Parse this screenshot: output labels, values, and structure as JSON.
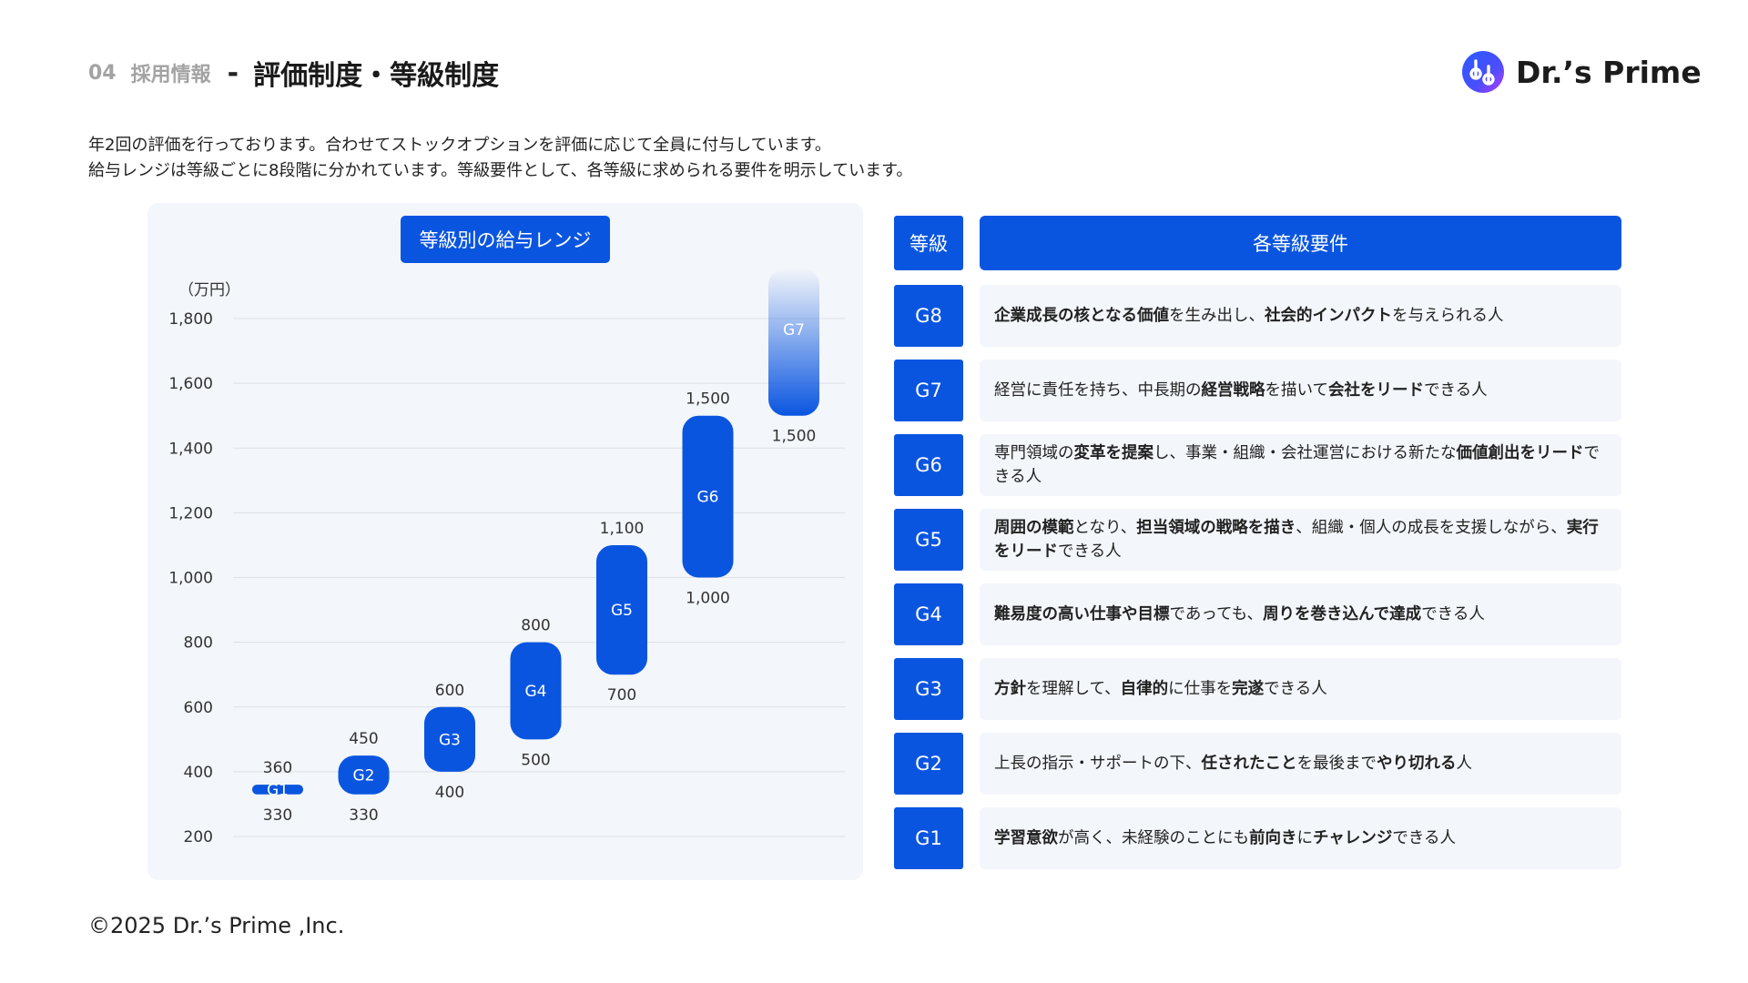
{
  "header": {
    "section_number": "04",
    "section_name": "採用情報",
    "separator": "-",
    "title": "評価制度・等級制度"
  },
  "logo": {
    "text": "Dr.’s Prime"
  },
  "intro": [
    "年2回の評価を行っております。合わせてストックオプションを評価に応じて全員に付与しています。",
    "給与レンジは等級ごとに8段階に分かれています。等級要件として、各等級に求められる要件を明示しています。"
  ],
  "chart_data": {
    "type": "bar",
    "subtype": "floating-range",
    "title": "等級別の給与レンジ",
    "ylabel": "（万円）",
    "ylim": [
      200,
      1800
    ],
    "yticks": [
      200,
      400,
      600,
      800,
      1000,
      1200,
      1400,
      1600,
      1800
    ],
    "ytick_labels": [
      "200",
      "400",
      "600",
      "800",
      "1,000",
      "1,200",
      "1,400",
      "1,600",
      "1,800"
    ],
    "grid": true,
    "bar_color": "#0a55e0",
    "categories": [
      "G1",
      "G2",
      "G3",
      "G4",
      "G5",
      "G6",
      "G7"
    ],
    "ranges": [
      {
        "grade": "G1",
        "low": 330,
        "high": 360,
        "low_label": "330",
        "high_label": "360"
      },
      {
        "grade": "G2",
        "low": 330,
        "high": 450,
        "low_label": "330",
        "high_label": "450"
      },
      {
        "grade": "G3",
        "low": 400,
        "high": 600,
        "low_label": "400",
        "high_label": "600"
      },
      {
        "grade": "G4",
        "low": 500,
        "high": 800,
        "low_label": "500",
        "high_label": "800"
      },
      {
        "grade": "G5",
        "low": 700,
        "high": 1100,
        "low_label": "700",
        "high_label": "1,100"
      },
      {
        "grade": "G6",
        "low": 1000,
        "high": 1500,
        "low_label": "1,000",
        "high_label": "1,500"
      },
      {
        "grade": "G7",
        "low": 1500,
        "high": null,
        "low_label": "1,500",
        "high_label": "",
        "open_ended": true
      }
    ]
  },
  "requirements": {
    "grade_header": "等級",
    "req_header": "各等級要件",
    "rows": [
      {
        "grade": "G8",
        "parts": [
          {
            "t": "企業成長の核となる価値",
            "b": true
          },
          {
            "t": "を生み出し、",
            "b": false
          },
          {
            "t": "社会的インパクト",
            "b": true
          },
          {
            "t": "を与えられる人",
            "b": false
          }
        ]
      },
      {
        "grade": "G7",
        "parts": [
          {
            "t": "経営に責任を持ち、中長期の",
            "b": false
          },
          {
            "t": "経営戦略",
            "b": true
          },
          {
            "t": "を描いて",
            "b": false
          },
          {
            "t": "会社をリード",
            "b": true
          },
          {
            "t": "できる人",
            "b": false
          }
        ]
      },
      {
        "grade": "G6",
        "parts": [
          {
            "t": "専門領域の",
            "b": false
          },
          {
            "t": "変革を提案",
            "b": true
          },
          {
            "t": "し、事業・組織・会社運営における新たな",
            "b": false
          },
          {
            "t": "価値創出をリード",
            "b": true
          },
          {
            "t": "できる人",
            "b": false
          }
        ]
      },
      {
        "grade": "G5",
        "parts": [
          {
            "t": "周囲の模範",
            "b": true
          },
          {
            "t": "となり、",
            "b": false
          },
          {
            "t": "担当領域の戦略を描き",
            "b": true
          },
          {
            "t": "、組織・個人の成長を支援しながら、",
            "b": false
          },
          {
            "t": "実行をリード",
            "b": true
          },
          {
            "t": "できる人",
            "b": false
          }
        ]
      },
      {
        "grade": "G4",
        "parts": [
          {
            "t": "難易度の高い仕事や目標",
            "b": true
          },
          {
            "t": "であっても、",
            "b": false
          },
          {
            "t": "周りを巻き込んで達成",
            "b": true
          },
          {
            "t": "できる人",
            "b": false
          }
        ]
      },
      {
        "grade": "G3",
        "parts": [
          {
            "t": "方針",
            "b": true
          },
          {
            "t": "を理解して、",
            "b": false
          },
          {
            "t": "自律的",
            "b": true
          },
          {
            "t": "に仕事を",
            "b": false
          },
          {
            "t": "完遂",
            "b": true
          },
          {
            "t": "できる人",
            "b": false
          }
        ]
      },
      {
        "grade": "G2",
        "parts": [
          {
            "t": "上長の指示・サポートの下、",
            "b": false
          },
          {
            "t": "任されたこと",
            "b": true
          },
          {
            "t": "を最後まで",
            "b": false
          },
          {
            "t": "やり切れる",
            "b": true
          },
          {
            "t": "人",
            "b": false
          }
        ]
      },
      {
        "grade": "G1",
        "parts": [
          {
            "t": "学習意欲",
            "b": true
          },
          {
            "t": "が高く、未経験のことにも",
            "b": false
          },
          {
            "t": "前向き",
            "b": true
          },
          {
            "t": "に",
            "b": false
          },
          {
            "t": "チャレンジ",
            "b": true
          },
          {
            "t": "できる人",
            "b": false
          }
        ]
      }
    ]
  },
  "footer": {
    "copyright": "©2025 Dr.’s Prime ,Inc."
  },
  "colors": {
    "accent": "#0a55e0",
    "panel": "#f3f6fa",
    "muted": "#a3a3a3"
  }
}
